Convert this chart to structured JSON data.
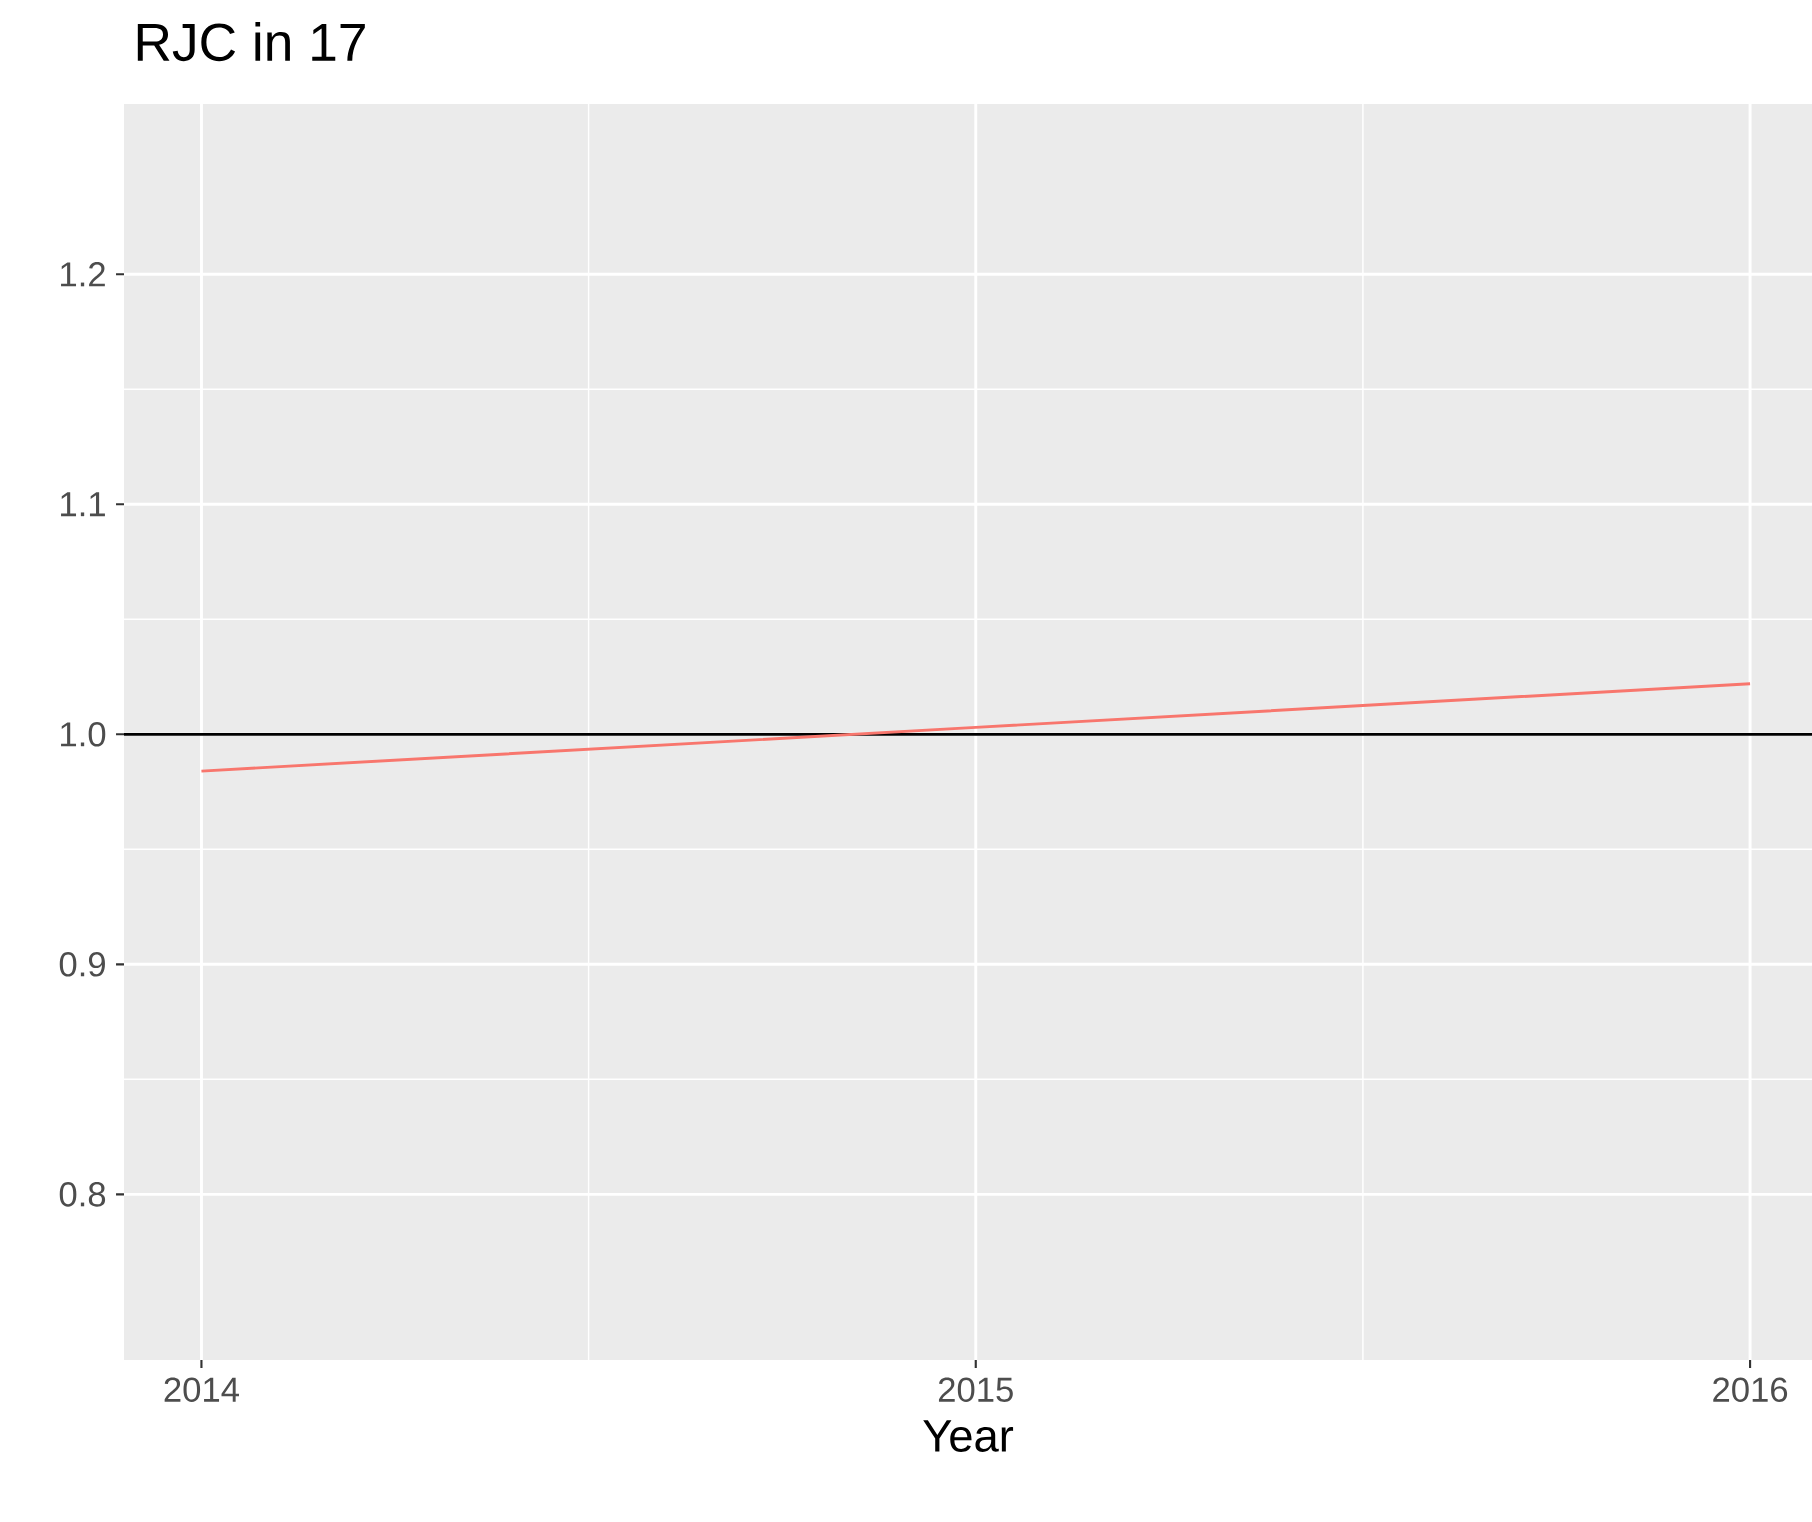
{
  "chart_data": {
    "type": "line",
    "title": "RJC in 17",
    "xlabel": "Year",
    "x": [
      2014,
      2015,
      2016
    ],
    "series": [
      {
        "color": "#f8766d",
        "values": [
          0.984,
          1.003,
          1.022
        ]
      }
    ],
    "xlim": [
      2013.9,
      2016.08
    ],
    "ylim": [
      0.728,
      1.274
    ],
    "xticks": [
      2014,
      2015,
      2016
    ],
    "yticks": [
      0.8,
      0.9,
      {
        "value": 1.0,
        "label": "1.0"
      },
      1.1,
      1.2
    ],
    "ref_lines": [
      {
        "axis": "y",
        "value": 1.0,
        "color": "#000000"
      }
    ],
    "grid": true
  }
}
